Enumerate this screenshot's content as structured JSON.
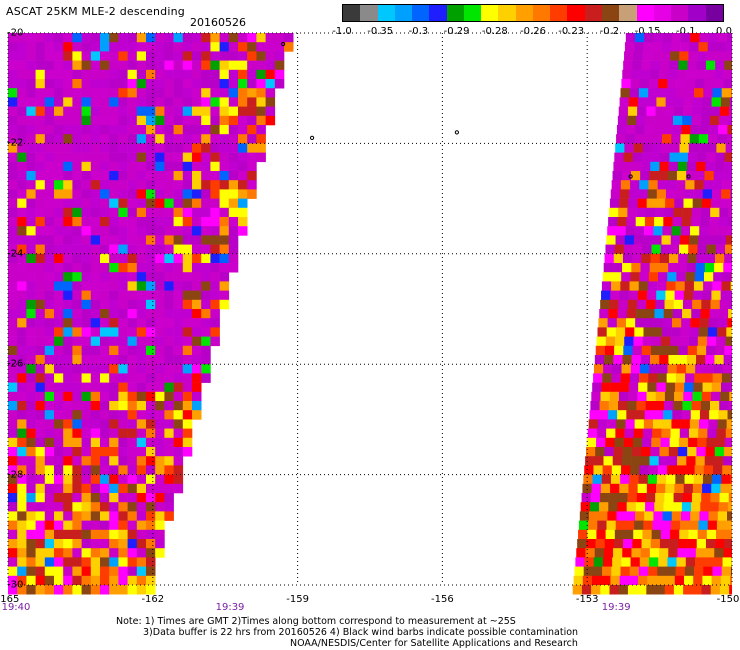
{
  "header": {
    "title": "ASCAT 25KM MLE-2 descending",
    "date": "20160526"
  },
  "colorbar": {
    "colors": [
      "#3a3a3a",
      "#8a8a8a",
      "#00c8ff",
      "#00a0ff",
      "#0064ff",
      "#1e1eff",
      "#00a000",
      "#00e600",
      "#ffff00",
      "#ffd000",
      "#ffa000",
      "#ff7800",
      "#ff3c00",
      "#ff0000",
      "#c81e1e",
      "#8b4513",
      "#c8a078",
      "#ff00ff",
      "#e600e6",
      "#c800c8",
      "#a000c8",
      "#7800a0"
    ],
    "ticks": [
      "-1.0",
      "-0.35",
      "-0.3",
      "-0.29",
      "-0.28",
      "-0.26",
      "-0.23",
      "-0.2",
      "-0.15",
      "-0.1",
      "0.0"
    ]
  },
  "axes": {
    "y_labels": [
      "-20",
      "-22",
      "-24",
      "-26",
      "-28",
      "-30"
    ],
    "x_labels": [
      "-165",
      "-162",
      "-159",
      "-156",
      "-153",
      "-150"
    ],
    "lon_range": [
      -165,
      -150
    ],
    "lat_range": [
      -30,
      -20
    ],
    "grid": "dotted"
  },
  "time_labels": [
    {
      "text": "19:40",
      "lon": -165
    },
    {
      "text": "19:39",
      "lon": -160.4
    },
    {
      "text": "19:39",
      "lon": -152.4
    }
  ],
  "swaths": [
    {
      "name": "west",
      "lon_min": -165,
      "lon_max_top": -159.2,
      "lon_max_bottom": -162.1
    },
    {
      "name": "east",
      "lon_min_top": -152.2,
      "lon_min_bottom": -153.3,
      "lon_max": -150
    }
  ],
  "notes": {
    "line1": "Note: 1) Times are GMT 2)Times along bottom correspond to measurement at ~25S",
    "line2": "3)Data buffer is 22 hrs from 20160526 4) Black wind barbs indicate possible contamination",
    "line3": "NOAA/NESDIS/Center for Satellite Applications and Research"
  }
}
